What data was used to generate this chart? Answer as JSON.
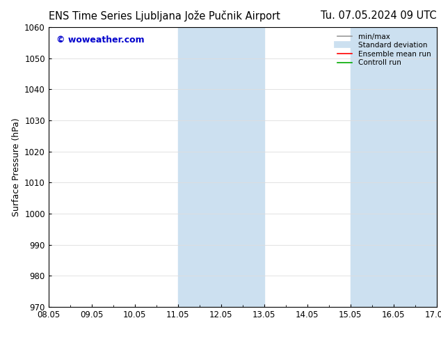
{
  "title": "ENS Time Series Ljubljana Jože Pučnik Airport      Tu. 07.05.2024 09 UTC",
  "title_left": "ENS Time Series Ljubljana Jože Pučnik Airport",
  "title_right": "Tu. 07.05.2024 09 UTC",
  "ylabel": "Surface Pressure (hPa)",
  "ylim": [
    970,
    1060
  ],
  "yticks": [
    970,
    980,
    990,
    1000,
    1010,
    1020,
    1030,
    1040,
    1050,
    1060
  ],
  "xtick_labels": [
    "08.05",
    "09.05",
    "10.05",
    "11.05",
    "12.05",
    "13.05",
    "14.05",
    "15.05",
    "16.05",
    "17.05"
  ],
  "x_positions": [
    0,
    1,
    2,
    3,
    4,
    5,
    6,
    7,
    8,
    9
  ],
  "xlim": [
    0,
    9
  ],
  "shaded_regions": [
    {
      "x_start": 3.0,
      "x_end": 5.0,
      "color": "#cce0f0"
    },
    {
      "x_start": 7.0,
      "x_end": 9.0,
      "color": "#cce0f0"
    }
  ],
  "watermark_text": "© woweather.com",
  "watermark_color": "#0000cc",
  "background_color": "#ffffff",
  "grid_color": "#dddddd",
  "legend_items": [
    {
      "label": "min/max",
      "color": "#999999",
      "lw": 1.2,
      "style": "solid"
    },
    {
      "label": "Standard deviation",
      "color": "#cce0f0",
      "lw": 7,
      "style": "solid"
    },
    {
      "label": "Ensemble mean run",
      "color": "#ff0000",
      "lw": 1.2,
      "style": "solid"
    },
    {
      "label": "Controll run",
      "color": "#00aa00",
      "lw": 1.2,
      "style": "solid"
    }
  ],
  "title_fontsize": 10.5,
  "tick_fontsize": 8.5,
  "ylabel_fontsize": 9,
  "legend_fontsize": 7.5,
  "watermark_fontsize": 9
}
